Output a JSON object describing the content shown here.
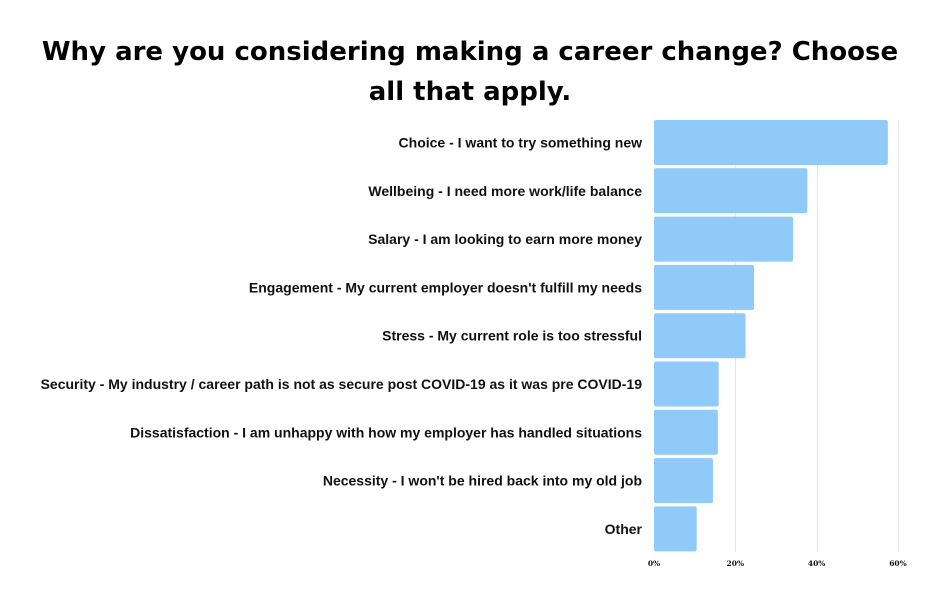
{
  "title": "Why are you considering making a career change? Choose all that apply.",
  "chart_data": {
    "type": "bar",
    "orientation": "horizontal",
    "categories": [
      "Choice - I want to try something new ",
      "Wellbeing - I need more work/life balance",
      "Salary - I am looking to earn more money",
      "Engagement - My current employer doesn't fulfill my needs",
      "Stress - My current role is too stressful",
      "Security - My industry / career path is not as secure post COVID-19 as it was pre COVID-19",
      "Dissatisfaction - I am unhappy with how my employer has handled situations",
      "Necessity - I won't be hired back into my old job",
      "Other"
    ],
    "values": [
      57.5,
      37.7,
      34.2,
      24.6,
      22.5,
      15.9,
      15.7,
      14.5,
      10.5
    ],
    "value_unit": "percent",
    "xlim": [
      0,
      60
    ],
    "ticks": [
      0,
      20,
      40,
      60
    ],
    "tick_labels": [
      "0%",
      "20%",
      "40%",
      "60%"
    ],
    "grid": true,
    "legend": "none",
    "colors": {
      "bar": "#90CAF9",
      "grid": "#E6E6E6",
      "text": "#111111"
    }
  }
}
